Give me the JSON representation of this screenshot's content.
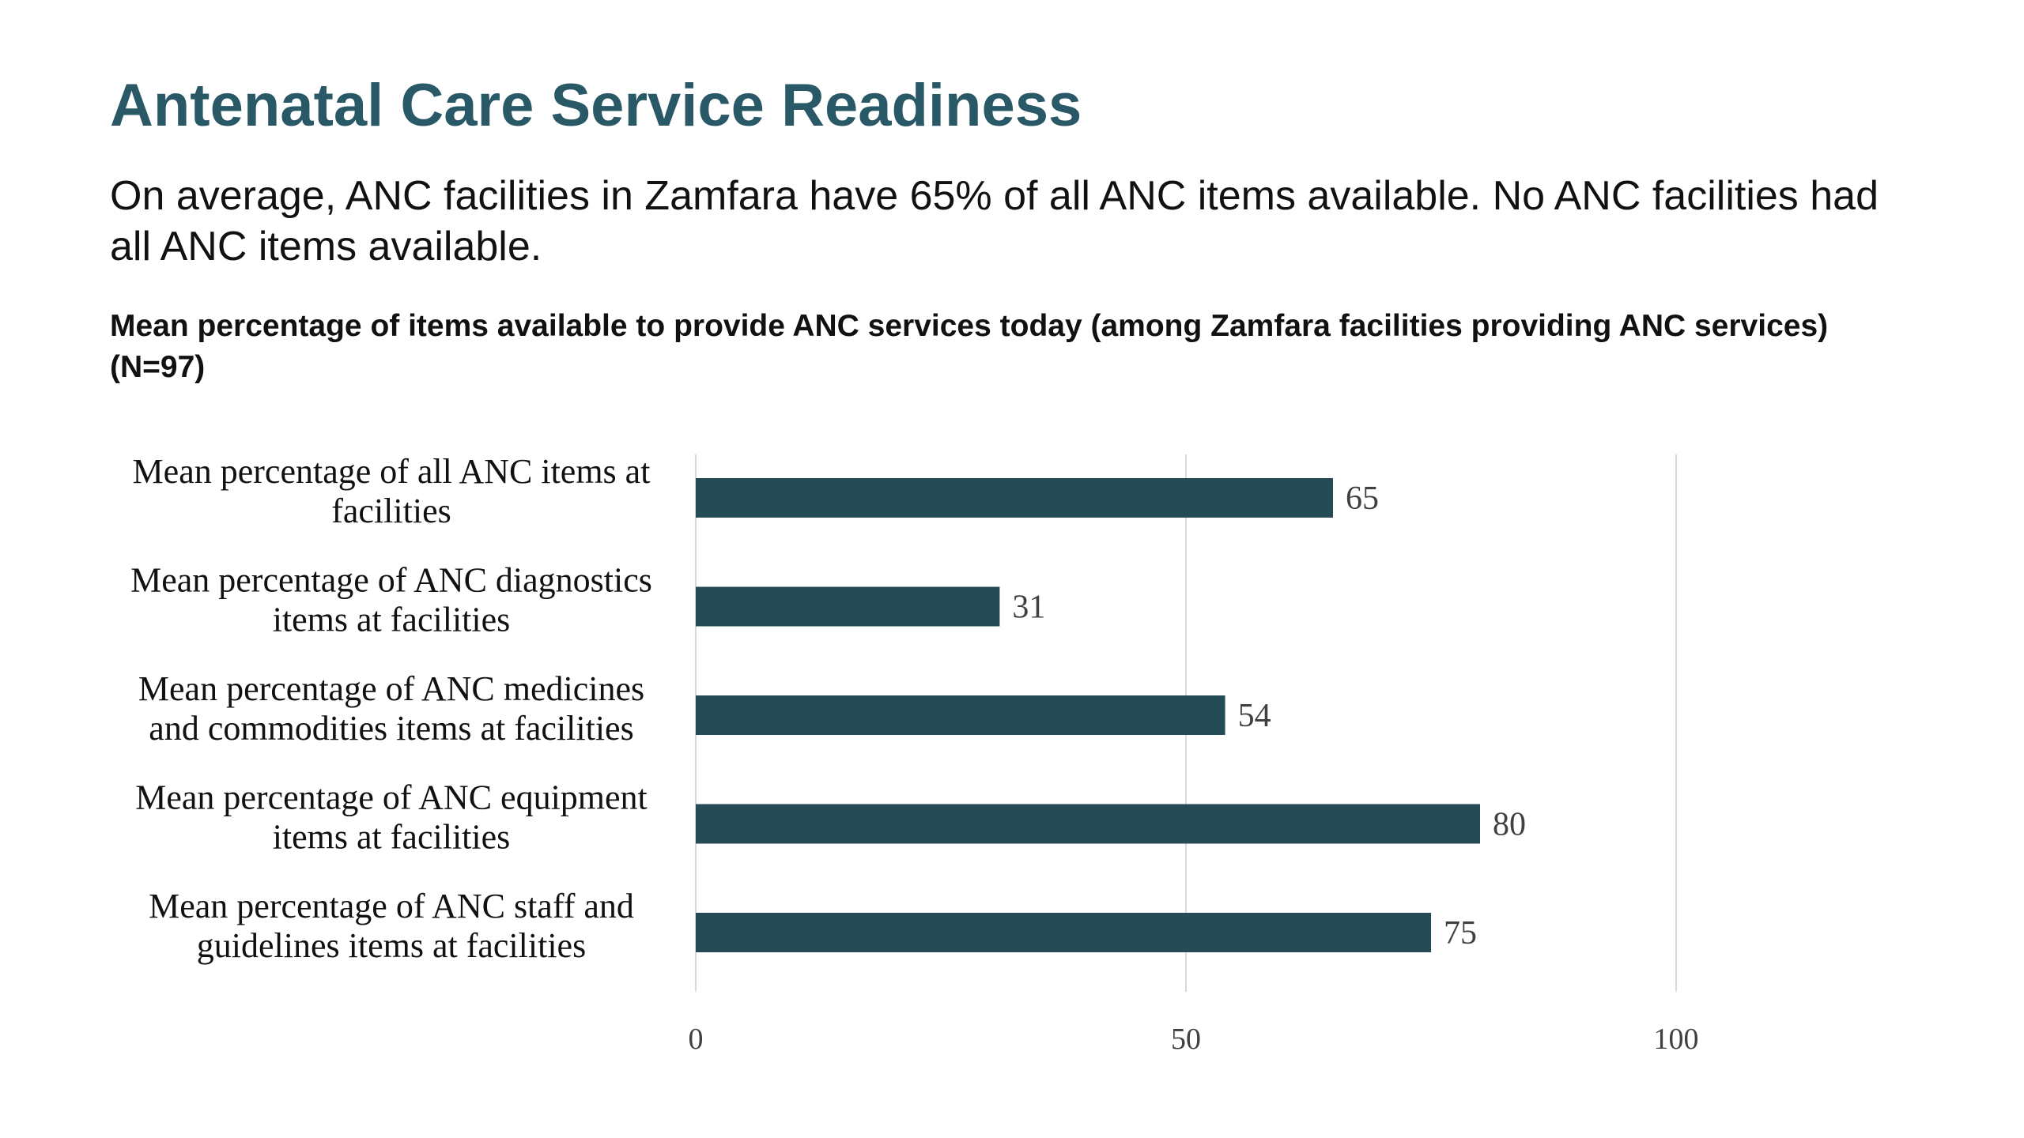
{
  "slide": {
    "title": "Antenatal Care Service Readiness",
    "summary": "On average, ANC facilities in Zamfara have 65% of all ANC items available. No ANC facilities had all ANC items available."
  },
  "colors": {
    "title": "#295866",
    "bar": "#254B57",
    "gridline": "#D9D9D9",
    "text": "#111111",
    "label": "#404040"
  },
  "chart_data": {
    "type": "bar",
    "orientation": "horizontal",
    "title": "Mean percentage of items available to provide ANC services today (among Zamfara facilities providing ANC services) (N=97)",
    "categories": [
      [
        "Mean percentage of all ANC items at",
        "facilities"
      ],
      [
        "Mean percentage of ANC diagnostics",
        "items at facilities"
      ],
      [
        "Mean percentage of ANC medicines",
        "and commodities items at facilities"
      ],
      [
        "Mean percentage of ANC equipment",
        "items at facilities"
      ],
      [
        "Mean percentage of ANC staff and",
        "guidelines items at facilities"
      ]
    ],
    "values": [
      65,
      31,
      54,
      80,
      75
    ],
    "xlim": [
      0,
      100
    ],
    "xticks": [
      0,
      50,
      100
    ],
    "grid": "vertical",
    "legend": "none",
    "data_labels": true
  }
}
